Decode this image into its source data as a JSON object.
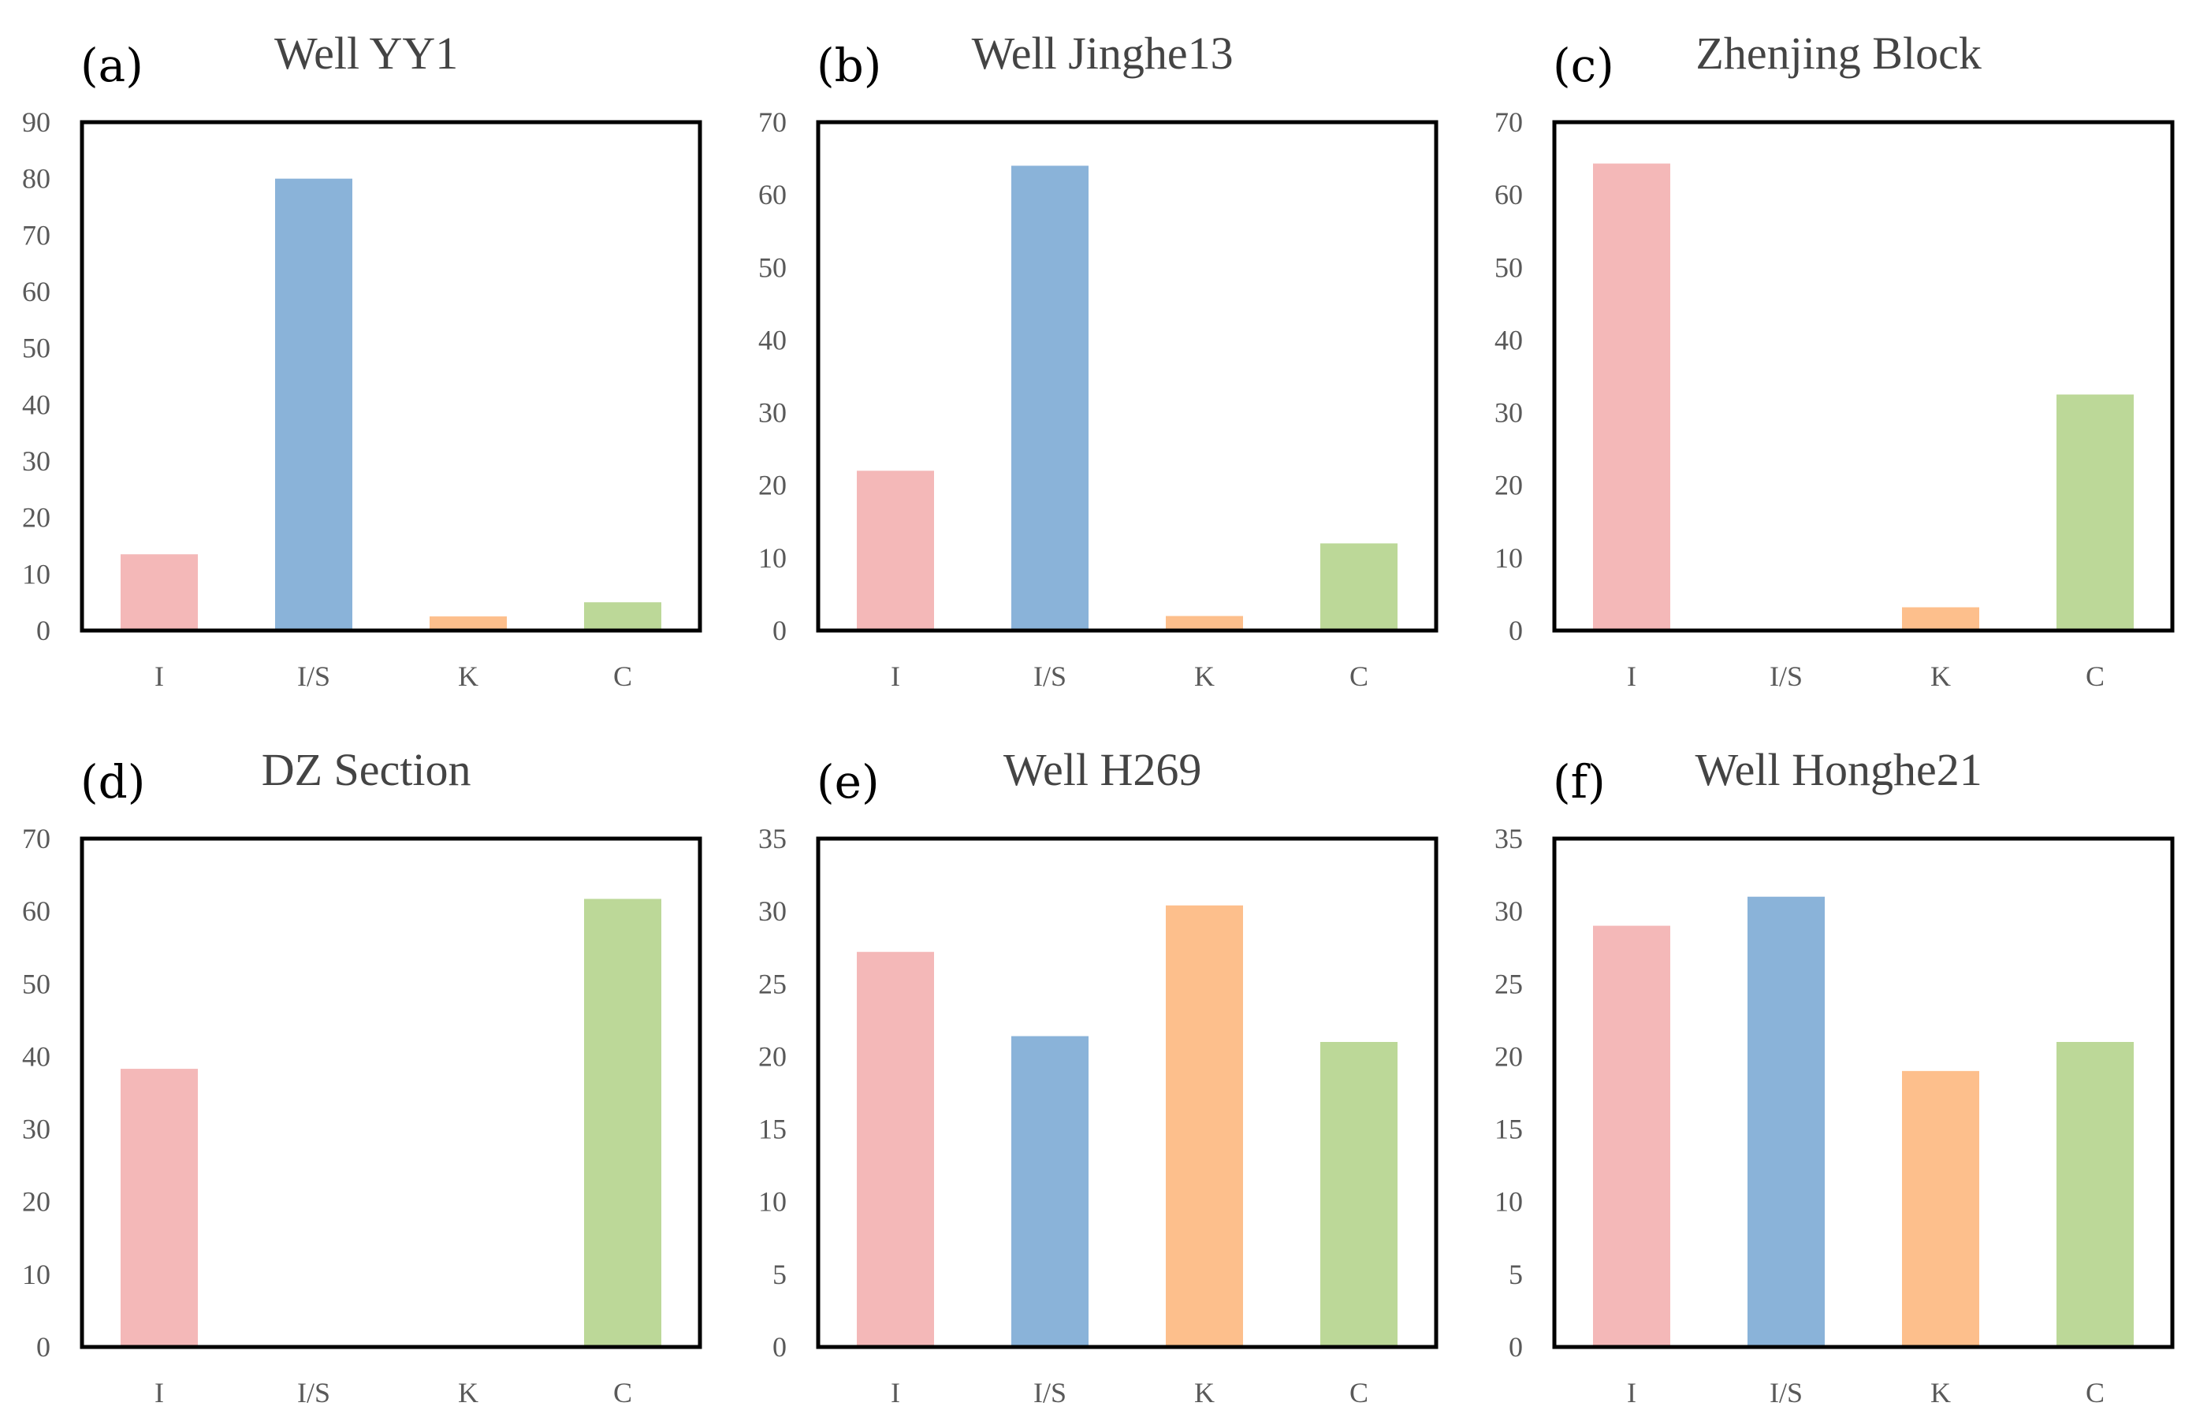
{
  "figure": {
    "categories": [
      "I",
      "I/S",
      "K",
      "C"
    ],
    "category_colors": [
      "#F4B8B8",
      "#8AB3D9",
      "#FDBF8C",
      "#BCD898"
    ]
  },
  "chart_data": [
    {
      "type": "bar",
      "panel": "(a)",
      "title": "Well YY1",
      "categories": [
        "I",
        "I/S",
        "K",
        "C"
      ],
      "values": [
        13.5,
        80,
        2.5,
        5
      ],
      "ylim": [
        0,
        90
      ],
      "yticks": [
        0,
        10,
        20,
        30,
        40,
        50,
        60,
        70,
        80,
        90
      ],
      "xlabel": "",
      "ylabel": "",
      "grid": false
    },
    {
      "type": "bar",
      "panel": "(b)",
      "title": "Well Jinghe13",
      "categories": [
        "I",
        "I/S",
        "K",
        "C"
      ],
      "values": [
        22,
        64,
        2,
        12
      ],
      "ylim": [
        0,
        70
      ],
      "yticks": [
        0,
        10,
        20,
        30,
        40,
        50,
        60,
        70
      ],
      "xlabel": "",
      "ylabel": "",
      "grid": false
    },
    {
      "type": "bar",
      "panel": "(c)",
      "title": "Zhenjing Block",
      "categories": [
        "I",
        "I/S",
        "K",
        "C"
      ],
      "values": [
        64.3,
        0,
        3.2,
        32.5
      ],
      "ylim": [
        0,
        70
      ],
      "yticks": [
        0,
        10,
        20,
        30,
        40,
        50,
        60,
        70
      ],
      "xlabel": "",
      "ylabel": "",
      "grid": false
    },
    {
      "type": "bar",
      "panel": "(d)",
      "title": "DZ Section",
      "categories": [
        "I",
        "I/S",
        "K",
        "C"
      ],
      "values": [
        38.3,
        0,
        0,
        61.7
      ],
      "ylim": [
        0,
        70
      ],
      "yticks": [
        0,
        10,
        20,
        30,
        40,
        50,
        60,
        70
      ],
      "xlabel": "",
      "ylabel": "",
      "grid": false
    },
    {
      "type": "bar",
      "panel": "(e)",
      "title": "Well H269",
      "categories": [
        "I",
        "I/S",
        "K",
        "C"
      ],
      "values": [
        27.2,
        21.4,
        30.4,
        21
      ],
      "ylim": [
        0,
        35
      ],
      "yticks": [
        0,
        5,
        10,
        15,
        20,
        25,
        30,
        35
      ],
      "xlabel": "",
      "ylabel": "",
      "grid": false
    },
    {
      "type": "bar",
      "panel": "(f)",
      "title": "Well Honghe21",
      "categories": [
        "I",
        "I/S",
        "K",
        "C"
      ],
      "values": [
        29,
        31,
        19,
        21
      ],
      "ylim": [
        0,
        35
      ],
      "yticks": [
        0,
        5,
        10,
        15,
        20,
        25,
        30,
        35
      ],
      "xlabel": "",
      "ylabel": "",
      "grid": false
    }
  ]
}
